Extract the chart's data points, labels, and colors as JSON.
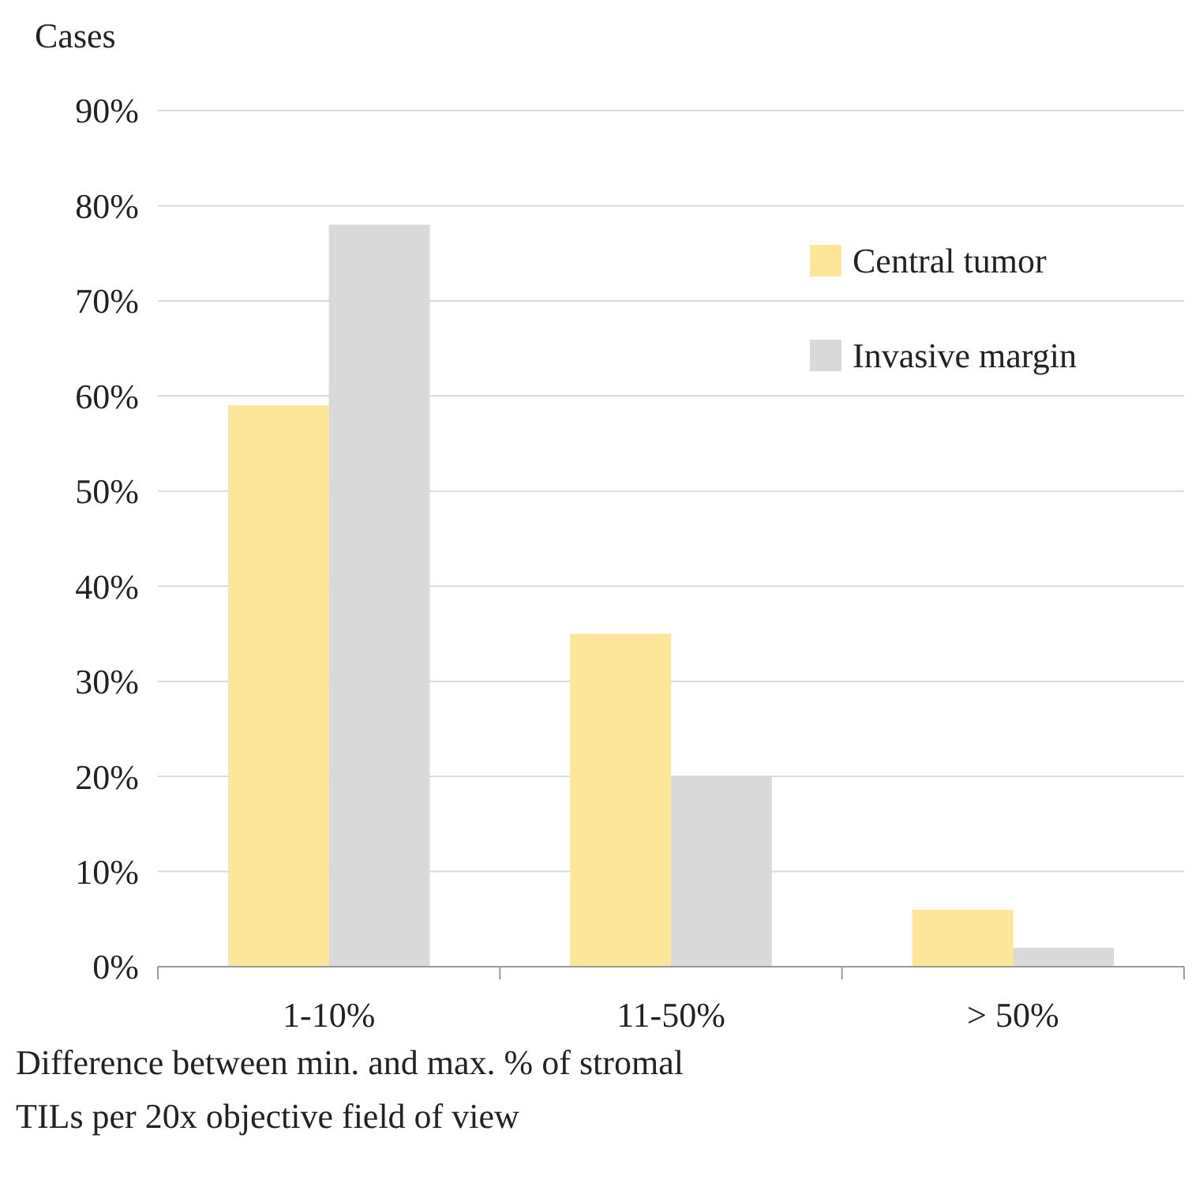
{
  "chart_data": {
    "type": "bar",
    "ylabel": "Cases",
    "xlabel": "Difference between min. and max. % of stromal\nTILs per 20x objective field of view",
    "categories": [
      "1-10%",
      "11-50%",
      "> 50%"
    ],
    "series": [
      {
        "name": "Central tumor",
        "color": "#fde59a",
        "values": [
          59,
          35,
          6
        ]
      },
      {
        "name": "Invasive margin",
        "color": "#d9d9d9",
        "values": [
          78,
          20,
          2
        ]
      }
    ],
    "ylim": [
      0,
      90
    ],
    "yticks": [
      {
        "value": 0,
        "label": "0%"
      },
      {
        "value": 10,
        "label": "10%"
      },
      {
        "value": 20,
        "label": "20%"
      },
      {
        "value": 30,
        "label": "30%"
      },
      {
        "value": 40,
        "label": "40%"
      },
      {
        "value": 50,
        "label": "50%"
      },
      {
        "value": 60,
        "label": "60%"
      },
      {
        "value": 70,
        "label": "70%"
      },
      {
        "value": 80,
        "label": "80%"
      },
      {
        "value": 90,
        "label": "90%"
      }
    ],
    "grid": "y",
    "legend": "top right"
  }
}
